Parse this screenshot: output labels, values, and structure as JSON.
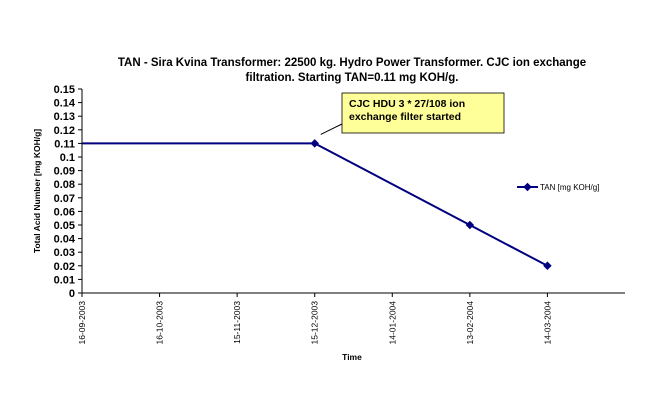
{
  "chart_data": {
    "type": "line",
    "title_line1": "TAN - Sira Kvina Transformer: 22500 kg. Hydro Power Transformer. CJC ion exchange",
    "title_line2": "filtration. Starting TAN=0.11 mg KOH/g.",
    "xlabel": "Time",
    "ylabel": "Total Acid Number [mg KOH/g]",
    "ylim": [
      0,
      0.15
    ],
    "y_ticks": [
      "0",
      "0.01",
      "0.02",
      "0.03",
      "0.04",
      "0.05",
      "0.06",
      "0.07",
      "0.08",
      "0.09",
      "0.1",
      "0.11",
      "0.12",
      "0.13",
      "0.14",
      "0.15"
    ],
    "x_ticks": [
      "16-09-2003",
      "16-10-2003",
      "15-11-2003",
      "15-12-2003",
      "14-01-2004",
      "13-02-2004",
      "14-03-2004"
    ],
    "xlim": [
      "2003-09-16",
      "2004-04-13"
    ],
    "grid": false,
    "legend_position": "right",
    "series": [
      {
        "name": "TAN [mg KOH/g]",
        "color": "#000080",
        "points": [
          {
            "x": "2003-09-16",
            "y": 0.11,
            "marker": false
          },
          {
            "x": "2003-12-15",
            "y": 0.11,
            "marker": true
          },
          {
            "x": "2004-02-13",
            "y": 0.05,
            "marker": true
          },
          {
            "x": "2004-03-14",
            "y": 0.02,
            "marker": true
          }
        ]
      }
    ],
    "annotation": {
      "lines": [
        "CJC HDU 3 * 27/108 ion",
        "exchange filter started"
      ],
      "target": {
        "x": "2003-12-15",
        "y": 0.11
      },
      "fill": "#ffff99"
    }
  }
}
